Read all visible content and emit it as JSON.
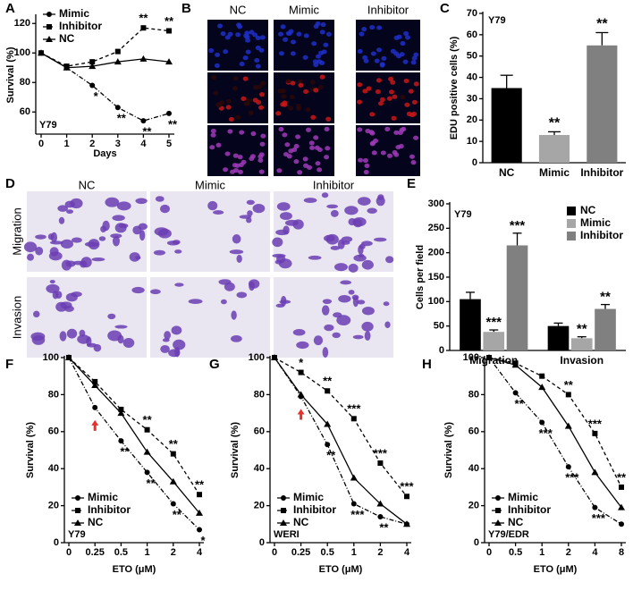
{
  "chart_data": [
    {
      "type": "line",
      "label": "A",
      "ylabel": "Survival (%)",
      "xlabel": "Days",
      "inset": "Y79",
      "x": [
        0,
        1,
        2,
        3,
        4,
        5
      ],
      "xlim": [
        0,
        5
      ],
      "xticks": [
        0,
        1,
        2,
        3,
        4,
        5
      ],
      "ylim": [
        45,
        125
      ],
      "yticks": [
        60,
        80,
        100,
        120
      ],
      "legend": "upper left",
      "series": [
        {
          "name": "Mimic",
          "color": "#000000",
          "marker": "circle",
          "dash": "5 2 1 2",
          "annotation_side": "below",
          "values": [
            100,
            90,
            78,
            63,
            54,
            59
          ],
          "annotations": [
            null,
            null,
            "*",
            "**",
            "**",
            "**"
          ]
        },
        {
          "name": "Inhibitor",
          "color": "#000000",
          "marker": "square",
          "dash": "4 3",
          "annotation_side": "above",
          "values": [
            100,
            91,
            94,
            101,
            117,
            115
          ],
          "annotations": [
            null,
            null,
            null,
            null,
            "**",
            "**"
          ]
        },
        {
          "name": "NC",
          "color": "#000000",
          "marker": "triangle",
          "dash": "solid",
          "annotation_side": "above",
          "values": [
            100,
            90,
            91,
            94,
            96,
            94
          ],
          "annotations": [
            null,
            null,
            null,
            null,
            null,
            null
          ]
        }
      ]
    },
    {
      "type": "image",
      "label": "B",
      "columns": [
        "NC",
        "Mimic",
        "Inhibitor"
      ],
      "rows": 3
    },
    {
      "type": "bar",
      "label": "C",
      "ylabel": "EDU positive cells (%)",
      "inset": "Y79",
      "categories": [
        "NC",
        "Mimic",
        "Inhibitor"
      ],
      "values": [
        35,
        13,
        55
      ],
      "errors": [
        6,
        1.5,
        6
      ],
      "colors": [
        "#000000",
        "#a6a6a6",
        "#808080"
      ],
      "annotations": [
        null,
        "**",
        "**"
      ],
      "ylim": [
        0,
        70
      ],
      "yticks": [
        0,
        10,
        20,
        30,
        40,
        50,
        60,
        70
      ]
    },
    {
      "type": "image",
      "label": "D",
      "columns": [
        "NC",
        "Mimic",
        "Inhibitor"
      ],
      "row_labels": [
        "Migration",
        "Invasion"
      ]
    },
    {
      "type": "grouped_bar",
      "label": "E",
      "ylabel": "Cells per field",
      "inset": "Y79",
      "categories": [
        "Migration",
        "Invasion"
      ],
      "legend": "upper right",
      "ylim": [
        0,
        300
      ],
      "yticks": [
        0,
        50,
        100,
        150,
        200,
        250,
        300
      ],
      "series": [
        {
          "name": "NC",
          "color": "#000000",
          "values": [
            105,
            50
          ],
          "errors": [
            14,
            6
          ],
          "annotations": [
            null,
            null
          ]
        },
        {
          "name": "Mimic",
          "color": "#a6a6a6",
          "values": [
            38,
            25
          ],
          "errors": [
            4,
            3
          ],
          "annotations": [
            "***",
            "**"
          ]
        },
        {
          "name": "Inhibitor",
          "color": "#808080",
          "values": [
            215,
            85
          ],
          "errors": [
            25,
            9
          ],
          "annotations": [
            "***",
            "**"
          ]
        }
      ]
    },
    {
      "type": "line",
      "label": "F",
      "ylabel": "Survival (%)",
      "xlabel": "ETO (μM)",
      "inset": "Y79",
      "categories": [
        "0",
        "0.25",
        "0.5",
        "1",
        "2",
        "4"
      ],
      "ylim": [
        0,
        100
      ],
      "yticks": [
        0,
        20,
        40,
        60,
        80,
        100
      ],
      "legend": "lower left",
      "series": [
        {
          "name": "Mimic",
          "color": "#000000",
          "marker": "circle",
          "dash": "5 2 1 2",
          "annotation_side": "below",
          "values": [
            100,
            73,
            55,
            38,
            21,
            7
          ],
          "annotations": [
            null,
            null,
            "**",
            "**",
            "**",
            "*"
          ]
        },
        {
          "name": "Inhibitor",
          "color": "#000000",
          "marker": "square",
          "dash": "4 3",
          "annotation_side": "above",
          "values": [
            100,
            87,
            72,
            61,
            48,
            26
          ],
          "annotations": [
            null,
            null,
            null,
            "**",
            "**",
            "**"
          ]
        },
        {
          "name": "NC",
          "color": "#000000",
          "marker": "triangle",
          "dash": "solid",
          "annotation_side": "above",
          "values": [
            100,
            85,
            70,
            49,
            33,
            16
          ],
          "annotations": [
            null,
            null,
            null,
            null,
            null,
            null
          ]
        }
      ]
    },
    {
      "type": "line",
      "label": "G",
      "ylabel": "Survival (%)",
      "xlabel": "ETO (μM)",
      "inset": "WERI",
      "categories": [
        "0",
        "0.25",
        "0.5",
        "1",
        "2",
        "4"
      ],
      "ylim": [
        0,
        100
      ],
      "yticks": [
        0,
        20,
        40,
        60,
        80,
        100
      ],
      "legend": "lower left",
      "series": [
        {
          "name": "Mimic",
          "color": "#000000",
          "marker": "circle",
          "dash": "5 2 1 2",
          "annotation_side": "below",
          "values": [
            100,
            79,
            53,
            21,
            14,
            10
          ],
          "annotations": [
            null,
            null,
            "**",
            "***",
            "**",
            null
          ]
        },
        {
          "name": "Inhibitor",
          "color": "#000000",
          "marker": "square",
          "dash": "4 3",
          "annotation_side": "above",
          "values": [
            100,
            92,
            82,
            67,
            43,
            25
          ],
          "annotations": [
            null,
            "*",
            "**",
            "***",
            "***",
            "***"
          ]
        },
        {
          "name": "NC",
          "color": "#000000",
          "marker": "triangle",
          "dash": "solid",
          "annotation_side": "above",
          "values": [
            100,
            80,
            64,
            35,
            21,
            10
          ],
          "annotations": [
            null,
            null,
            null,
            null,
            null,
            null
          ]
        }
      ]
    },
    {
      "type": "line",
      "label": "H",
      "ylabel": "Survival (%)",
      "xlabel": "ETO (μM)",
      "inset": "Y79/EDR",
      "categories": [
        "0",
        "0.5",
        "1",
        "2",
        "4",
        "8"
      ],
      "ylim": [
        0,
        100
      ],
      "yticks": [
        0,
        20,
        40,
        60,
        80,
        100
      ],
      "legend": "lower left",
      "series": [
        {
          "name": "Mimic",
          "color": "#000000",
          "marker": "circle",
          "dash": "5 2 1 2",
          "annotation_side": "below",
          "values": [
            100,
            81,
            65,
            41,
            19,
            10
          ],
          "annotations": [
            null,
            "**",
            "***",
            "***",
            "***",
            null
          ]
        },
        {
          "name": "Inhibitor",
          "color": "#000000",
          "marker": "square",
          "dash": "4 3",
          "annotation_side": "above",
          "values": [
            100,
            97,
            90,
            80,
            59,
            30
          ],
          "annotations": [
            null,
            null,
            null,
            "**",
            "***",
            "**"
          ]
        },
        {
          "name": "NC",
          "color": "#000000",
          "marker": "triangle",
          "dash": "solid",
          "annotation_side": "above",
          "values": [
            100,
            96,
            84,
            63,
            38,
            19
          ],
          "annotations": [
            null,
            null,
            null,
            null,
            null,
            null
          ]
        }
      ]
    }
  ]
}
